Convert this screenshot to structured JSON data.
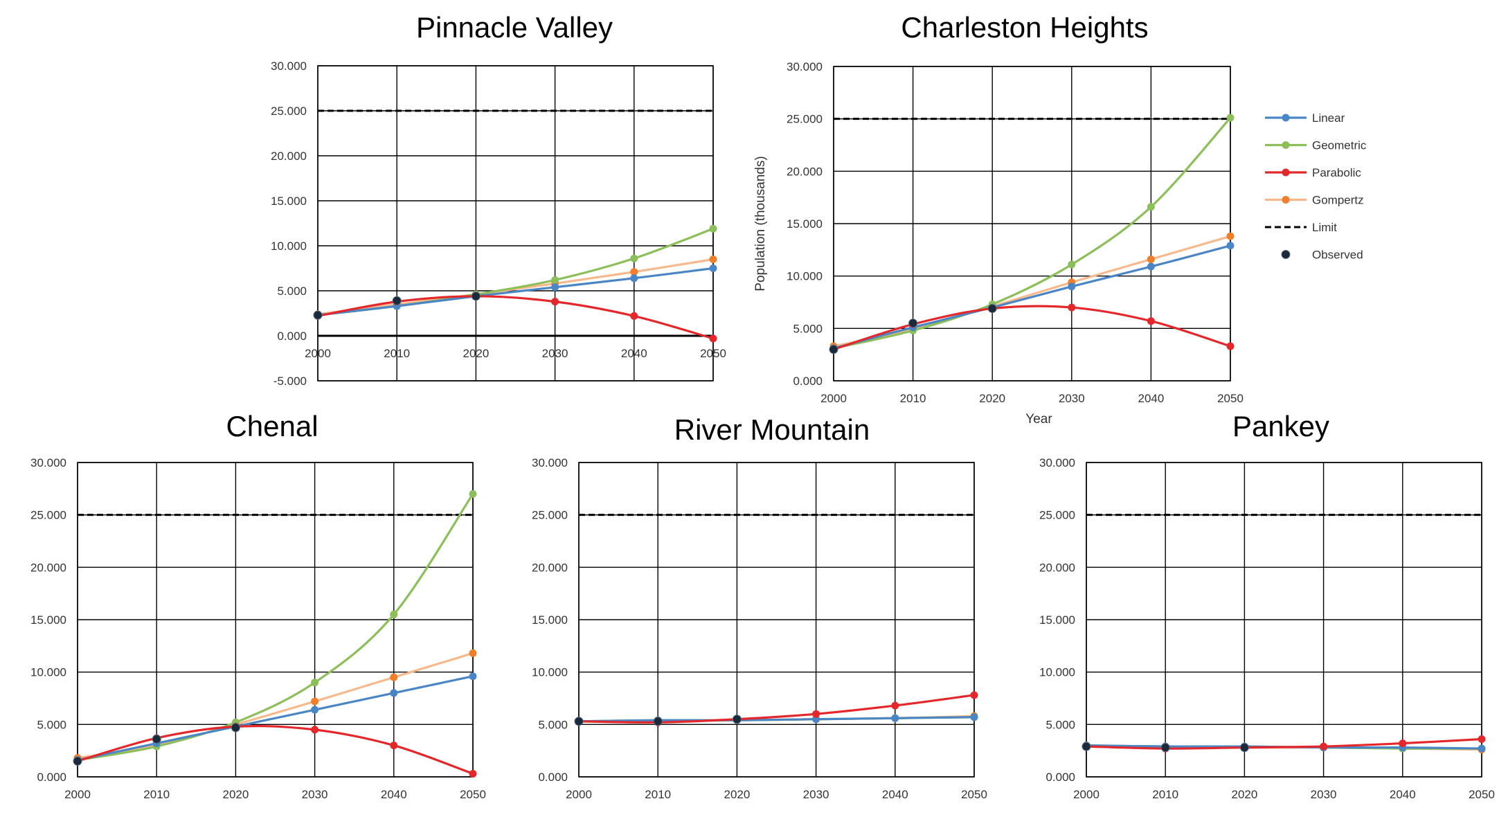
{
  "colors": {
    "Linear": "#4a86c5",
    "Geometric": "#8cbf59",
    "Parabolic": "#e3272b",
    "Gompertz": "#f7b98c",
    "Gompertz_marker": "#f07f2b",
    "Limit": "#000000",
    "Observed": "#1b2a3b"
  },
  "legend": {
    "entries": [
      "Linear",
      "Geometric",
      "Parabolic",
      "Gompertz",
      "Limit",
      "Observed"
    ]
  },
  "chart_data": [
    {
      "type": "line",
      "title": "Pinnacle Valley",
      "xlabel": "",
      "ylabel": "",
      "x": [
        2000,
        2010,
        2020,
        2030,
        2040,
        2050
      ],
      "ylim": [
        -5,
        30
      ],
      "yticks": [
        "30.000",
        "25.000",
        "20.000",
        "15.000",
        "10.000",
        "5.000",
        "0.000",
        "-5.000"
      ],
      "xticks": [
        "2000",
        "2010",
        "2020",
        "2030",
        "2040",
        "2050"
      ],
      "limit": 25,
      "observed": [
        2.3,
        3.9,
        4.4
      ],
      "series": [
        {
          "name": "Linear",
          "values": [
            2.3,
            3.3,
            4.4,
            5.4,
            6.4,
            7.5
          ]
        },
        {
          "name": "Geometric",
          "values": [
            2.3,
            3.3,
            4.6,
            6.2,
            8.6,
            11.9
          ]
        },
        {
          "name": "Parabolic",
          "values": [
            2.2,
            3.8,
            4.4,
            3.8,
            2.2,
            -0.3
          ]
        },
        {
          "name": "Gompertz",
          "values": [
            2.4,
            3.5,
            4.6,
            5.8,
            7.1,
            8.5
          ]
        }
      ],
      "grid": true
    },
    {
      "type": "line",
      "title": "Charleston Heights",
      "xlabel": "Year",
      "ylabel": "Population (thousands)",
      "x": [
        2000,
        2010,
        2020,
        2030,
        2040,
        2050
      ],
      "ylim": [
        0,
        30
      ],
      "yticks": [
        "30.000",
        "25.000",
        "20.000",
        "15.000",
        "10.000",
        "5.000",
        "0.000"
      ],
      "xticks": [
        "2000",
        "2010",
        "2020",
        "2030",
        "2040",
        "2050"
      ],
      "limit": 25,
      "observed": [
        3.0,
        5.5,
        6.9
      ],
      "series": [
        {
          "name": "Linear",
          "values": [
            3.1,
            5.1,
            7.0,
            9.0,
            10.9,
            12.9
          ]
        },
        {
          "name": "Geometric",
          "values": [
            3.1,
            4.8,
            7.3,
            11.1,
            16.6,
            25.1
          ]
        },
        {
          "name": "Parabolic",
          "values": [
            3.0,
            5.4,
            6.9,
            7.0,
            5.7,
            3.3
          ]
        },
        {
          "name": "Gompertz",
          "values": [
            3.3,
            4.9,
            7.1,
            9.4,
            11.6,
            13.8
          ]
        }
      ],
      "grid": true
    },
    {
      "type": "line",
      "title": "Chenal",
      "xlabel": "",
      "ylabel": "",
      "x": [
        2000,
        2010,
        2020,
        2030,
        2040,
        2050
      ],
      "ylim": [
        0,
        30
      ],
      "yticks": [
        "30.000",
        "25.000",
        "20.000",
        "15.000",
        "10.000",
        "5.000",
        "0.000"
      ],
      "xticks": [
        "2000",
        "2010",
        "2020",
        "2030",
        "2040",
        "2050"
      ],
      "limit": 25,
      "observed": [
        1.5,
        3.6,
        4.7
      ],
      "series": [
        {
          "name": "Linear",
          "values": [
            1.6,
            3.2,
            4.8,
            6.4,
            8.0,
            9.6
          ]
        },
        {
          "name": "Geometric",
          "values": [
            1.6,
            2.9,
            5.2,
            9.0,
            15.5,
            27.0
          ]
        },
        {
          "name": "Parabolic",
          "values": [
            1.5,
            3.7,
            4.8,
            4.5,
            3.0,
            0.3
          ]
        },
        {
          "name": "Gompertz",
          "values": [
            1.8,
            3.0,
            5.0,
            7.2,
            9.5,
            11.8
          ]
        }
      ],
      "grid": true
    },
    {
      "type": "line",
      "title": "River Mountain",
      "xlabel": "",
      "ylabel": "",
      "x": [
        2000,
        2010,
        2020,
        2030,
        2040,
        2050
      ],
      "ylim": [
        0,
        30
      ],
      "yticks": [
        "30.000",
        "25.000",
        "20.000",
        "15.000",
        "10.000",
        "5.000",
        "0.000"
      ],
      "xticks": [
        "2000",
        "2010",
        "2020",
        "2030",
        "2040",
        "2050"
      ],
      "limit": 25,
      "observed": [
        5.3,
        5.3,
        5.5
      ],
      "series": [
        {
          "name": "Linear",
          "values": [
            5.3,
            5.4,
            5.4,
            5.5,
            5.6,
            5.7
          ]
        },
        {
          "name": "Geometric",
          "values": [
            5.3,
            5.4,
            5.4,
            5.5,
            5.6,
            5.7
          ]
        },
        {
          "name": "Parabolic",
          "values": [
            5.3,
            5.2,
            5.5,
            6.0,
            6.8,
            7.8
          ]
        },
        {
          "name": "Gompertz",
          "values": [
            5.3,
            5.3,
            5.4,
            5.5,
            5.6,
            5.8
          ]
        }
      ],
      "grid": true
    },
    {
      "type": "line",
      "title": "Pankey",
      "xlabel": "",
      "ylabel": "",
      "x": [
        2000,
        2010,
        2020,
        2030,
        2040,
        2050
      ],
      "ylim": [
        0,
        30
      ],
      "yticks": [
        "30.000",
        "25.000",
        "20.000",
        "15.000",
        "10.000",
        "5.000",
        "0.000"
      ],
      "xticks": [
        "2000",
        "2010",
        "2020",
        "2030",
        "2040",
        "2050"
      ],
      "limit": 25,
      "observed": [
        2.9,
        2.8,
        2.8
      ],
      "series": [
        {
          "name": "Linear",
          "values": [
            3.0,
            2.9,
            2.9,
            2.8,
            2.8,
            2.7
          ]
        },
        {
          "name": "Geometric",
          "values": [
            3.0,
            2.9,
            2.9,
            2.8,
            2.7,
            2.7
          ]
        },
        {
          "name": "Parabolic",
          "values": [
            2.9,
            2.7,
            2.8,
            2.9,
            3.2,
            3.6
          ]
        },
        {
          "name": "Gompertz",
          "values": [
            3.0,
            2.9,
            2.8,
            2.8,
            2.7,
            2.6
          ]
        }
      ],
      "grid": true
    }
  ]
}
